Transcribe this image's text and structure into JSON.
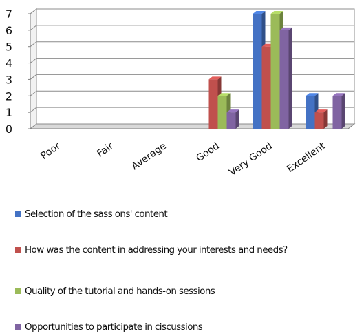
{
  "chart_data": {
    "type": "bar",
    "categories": [
      "Poor",
      "Fair",
      "Average",
      "Good",
      "Very Good",
      "Excellent"
    ],
    "series": [
      {
        "name": "Selection of the sass ons' content",
        "color": "#4472C4",
        "values": [
          0,
          0,
          0,
          0,
          7,
          2
        ]
      },
      {
        "name": "How was the content in addressing your interests and needs?",
        "color": "#C0504D",
        "values": [
          0,
          0,
          0,
          3,
          5,
          1
        ]
      },
      {
        "name": "Quality of the tutorial and hands-on sessions",
        "color": "#9BBB59",
        "values": [
          0,
          0,
          0,
          2,
          7,
          0
        ]
      },
      {
        "name": "Opportunities to participate in ciscussions",
        "color": "#8064A2",
        "values": [
          0,
          0,
          0,
          1,
          6,
          2
        ]
      }
    ],
    "yticks": [
      "0",
      "1",
      "2",
      "3",
      "4",
      "5",
      "6",
      "7"
    ],
    "ylim": [
      0,
      7
    ],
    "grid": true,
    "legend_position": "bottom",
    "style": "3d-clustered-column",
    "title": "",
    "xlabel": "",
    "ylabel": ""
  }
}
